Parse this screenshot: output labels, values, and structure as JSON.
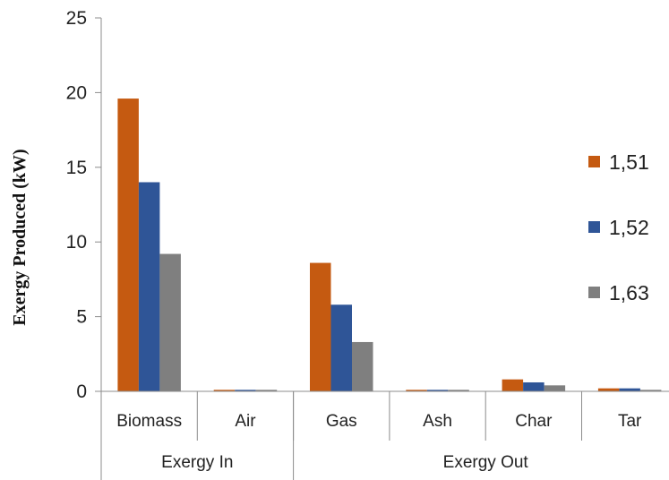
{
  "chart_data": {
    "type": "bar",
    "title": "",
    "xlabel": "",
    "ylabel": "Exergy Produced  (kW)",
    "ylim": [
      0,
      25
    ],
    "yticks": [
      "0",
      "5",
      "10",
      "15",
      "20",
      "25"
    ],
    "categories": [
      "Biomass",
      "Air",
      "Gas",
      "Ash",
      "Char",
      "Tar"
    ],
    "groups": [
      {
        "label": "Exergy In",
        "categories": [
          "Biomass",
          "Air"
        ]
      },
      {
        "label": "Exergy Out",
        "categories": [
          "Gas",
          "Ash",
          "Char",
          "Tar"
        ]
      }
    ],
    "series": [
      {
        "name": "1,51",
        "color": "#C55A11",
        "values": [
          19.6,
          0.1,
          8.6,
          0.1,
          0.8,
          0.2
        ]
      },
      {
        "name": "1,52",
        "color": "#2F5597",
        "values": [
          14.0,
          0.1,
          5.8,
          0.1,
          0.6,
          0.2
        ]
      },
      {
        "name": "1,63",
        "color": "#7F7F7F",
        "values": [
          9.2,
          0.1,
          3.3,
          0.1,
          0.4,
          0.1
        ]
      }
    ],
    "grid": false,
    "legend_position": "right"
  }
}
